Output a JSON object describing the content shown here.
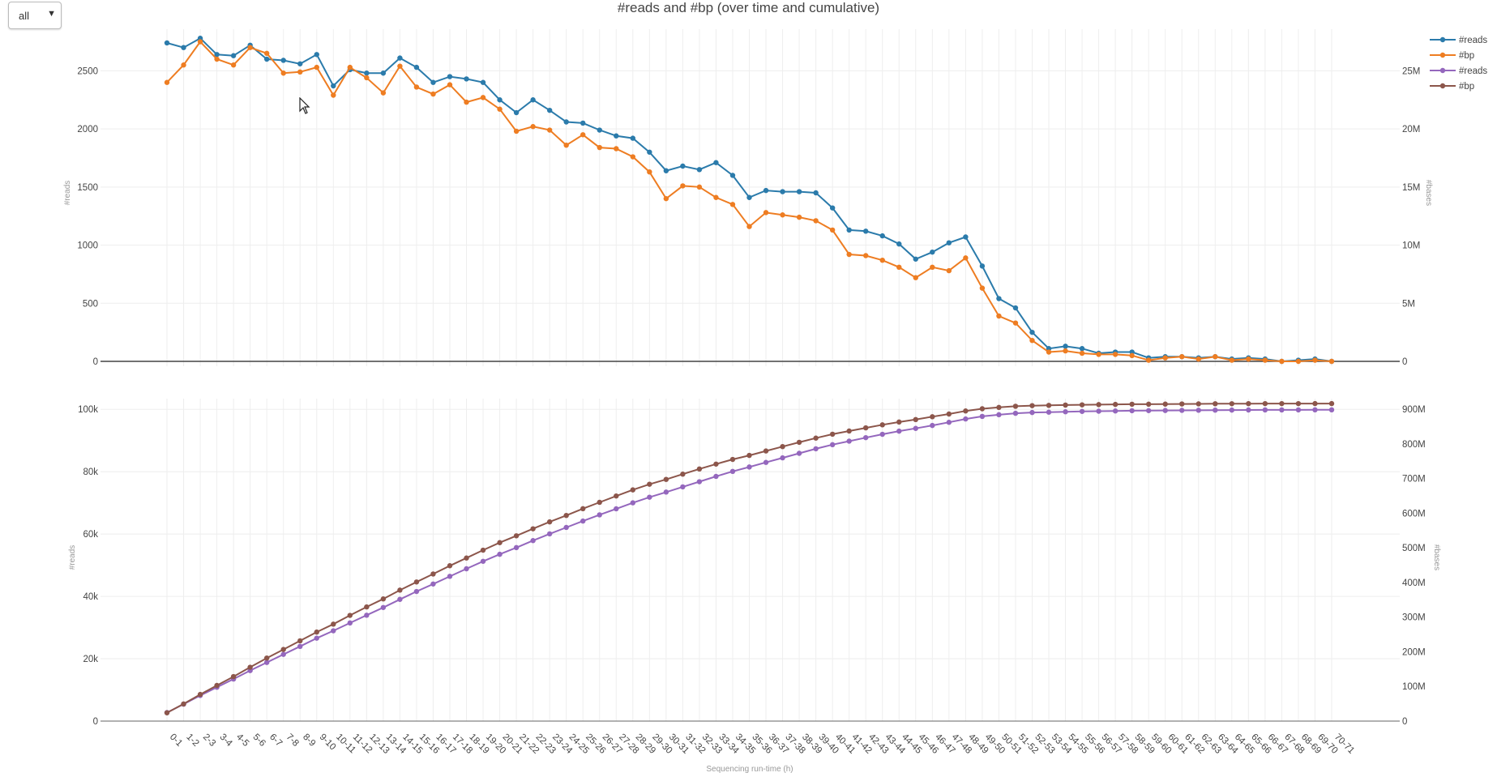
{
  "dropdown": {
    "value": "all"
  },
  "title": "#reads and #bp (over time and cumulative)",
  "colors": {
    "reads": "#2b7bab",
    "bp": "#ee7d22",
    "cum_reads": "#9467bd",
    "cum_bp": "#8c564b"
  },
  "chart_data": [
    {
      "type": "line",
      "title": "#reads and #bp (over time and cumulative)",
      "xlabel": "Sequencing run-time (h)",
      "ylabel": "#reads",
      "y2label": "#bases",
      "ylim": [
        0,
        2900
      ],
      "y2lim": [
        0,
        29000000
      ],
      "yticks": [
        0,
        500,
        1000,
        1500,
        2000,
        2500
      ],
      "y2ticks": [
        0,
        5000000,
        10000000,
        15000000,
        20000000,
        25000000
      ],
      "y2ticklabels": [
        "0",
        "5M",
        "10M",
        "15M",
        "20M",
        "25M"
      ],
      "categories": [
        "0-1",
        "1-2",
        "2-3",
        "3-4",
        "4-5",
        "5-6",
        "6-7",
        "7-8",
        "8-9",
        "9-10",
        "10-11",
        "11-12",
        "12-13",
        "13-14",
        "14-15",
        "15-16",
        "16-17",
        "17-18",
        "18-19",
        "19-20",
        "20-21",
        "21-22",
        "22-23",
        "23-24",
        "24-25",
        "25-26",
        "26-27",
        "27-28",
        "28-29",
        "29-30",
        "30-31",
        "31-32",
        "32-33",
        "33-34",
        "34-35",
        "35-36",
        "36-37",
        "37-38",
        "38-39",
        "39-40",
        "40-41",
        "41-42",
        "42-43",
        "43-44",
        "44-45",
        "45-46",
        "46-47",
        "47-48",
        "48-49",
        "49-50",
        "50-51",
        "51-52",
        "52-53",
        "53-54",
        "54-55",
        "55-56",
        "56-57",
        "57-58",
        "58-59",
        "59-60",
        "60-61",
        "61-62",
        "62-63",
        "63-64",
        "64-65",
        "65-66",
        "66-67",
        "67-68",
        "68-69",
        "69-70",
        "70-71"
      ],
      "legend_position": "top-right",
      "series": [
        {
          "name": "#reads",
          "axis": "y",
          "values": [
            2740,
            2700,
            2780,
            2640,
            2630,
            2720,
            2600,
            2590,
            2560,
            2640,
            2370,
            2510,
            2480,
            2480,
            2610,
            2530,
            2400,
            2450,
            2430,
            2400,
            2250,
            2140,
            2250,
            2160,
            2060,
            2050,
            1990,
            1940,
            1920,
            1800,
            1640,
            1680,
            1650,
            1710,
            1600,
            1410,
            1470,
            1460,
            1460,
            1450,
            1320,
            1130,
            1120,
            1080,
            1010,
            880,
            940,
            1020,
            1070,
            820,
            540,
            460,
            250,
            110,
            130,
            110,
            70,
            80,
            80,
            30,
            40,
            40,
            30,
            40,
            20,
            30,
            20,
            0,
            10,
            20,
            0
          ]
        },
        {
          "name": "#bp",
          "axis": "y2",
          "values": [
            24000000,
            25500000,
            27500000,
            26000000,
            25500000,
            27000000,
            26500000,
            24800000,
            24900000,
            25300000,
            22900000,
            25300000,
            24400000,
            23100000,
            25400000,
            23600000,
            23000000,
            23800000,
            22300000,
            22700000,
            21700000,
            19800000,
            20200000,
            19900000,
            18600000,
            19500000,
            18400000,
            18300000,
            17600000,
            16300000,
            14000000,
            15100000,
            15000000,
            14100000,
            13500000,
            11600000,
            12800000,
            12600000,
            12400000,
            12100000,
            11300000,
            9200000,
            9100000,
            8700000,
            8100000,
            7200000,
            8100000,
            7800000,
            8900000,
            6300000,
            3900000,
            3300000,
            1800000,
            800000,
            900000,
            700000,
            600000,
            600000,
            500000,
            100000,
            300000,
            400000,
            200000,
            400000,
            100000,
            200000,
            100000,
            0,
            0,
            100000,
            0
          ]
        }
      ]
    },
    {
      "type": "line",
      "xlabel": "Sequencing run-time (h)",
      "ylabel": "#reads",
      "y2label": "#bases",
      "ylim": [
        0,
        105000
      ],
      "y2lim": [
        0,
        945000000
      ],
      "yticks": [
        0,
        20000,
        40000,
        60000,
        80000,
        100000
      ],
      "yticklabels": [
        "0",
        "20k",
        "40k",
        "60k",
        "80k",
        "100k"
      ],
      "y2ticks": [
        0,
        100000000,
        200000000,
        300000000,
        400000000,
        500000000,
        600000000,
        700000000,
        800000000,
        900000000
      ],
      "y2ticklabels": [
        "0",
        "100M",
        "200M",
        "300M",
        "400M",
        "500M",
        "600M",
        "700M",
        "800M",
        "900M"
      ],
      "legend_position": "top-right",
      "series": [
        {
          "name": "#reads",
          "axis": "y",
          "values": [
            2740,
            5440,
            8220,
            10860,
            13490,
            16210,
            18810,
            21400,
            23960,
            26600,
            28970,
            31480,
            33960,
            36440,
            39050,
            41580,
            43980,
            46430,
            48860,
            51260,
            53510,
            55650,
            57900,
            60060,
            62120,
            64170,
            66160,
            68100,
            70020,
            71820,
            73460,
            75140,
            76790,
            78500,
            80100,
            81510,
            82980,
            84440,
            85900,
            87350,
            88670,
            89800,
            90920,
            92000,
            93010,
            93890,
            94830,
            95850,
            96920,
            97740,
            98280,
            98740,
            98990,
            99100,
            99230,
            99340,
            99410,
            99490,
            99570,
            99600,
            99640,
            99680,
            99710,
            99750,
            99770,
            99800,
            99820,
            99820,
            99830,
            99850,
            99850
          ]
        },
        {
          "name": "#bp",
          "axis": "y2",
          "values": [
            24000000,
            49500000,
            77000000,
            103000000,
            128500000,
            155500000,
            182000000,
            206800000,
            231700000,
            257000000,
            279900000,
            305200000,
            329600000,
            352700000,
            378100000,
            401700000,
            424700000,
            448500000,
            470800000,
            493500000,
            515200000,
            535000000,
            555200000,
            575100000,
            593700000,
            613200000,
            631600000,
            649900000,
            667500000,
            683800000,
            697800000,
            712900000,
            727900000,
            742000000,
            755500000,
            767100000,
            779900000,
            792500000,
            804900000,
            817000000,
            828300000,
            837500000,
            846600000,
            855300000,
            863400000,
            870600000,
            878700000,
            886500000,
            895400000,
            901700000,
            905600000,
            908900000,
            910700000,
            911500000,
            912400000,
            913100000,
            913700000,
            914300000,
            914800000,
            914900000,
            915200000,
            915600000,
            915800000,
            916200000,
            916300000,
            916500000,
            916600000,
            916600000,
            916600000,
            916700000,
            916700000
          ]
        }
      ]
    }
  ]
}
